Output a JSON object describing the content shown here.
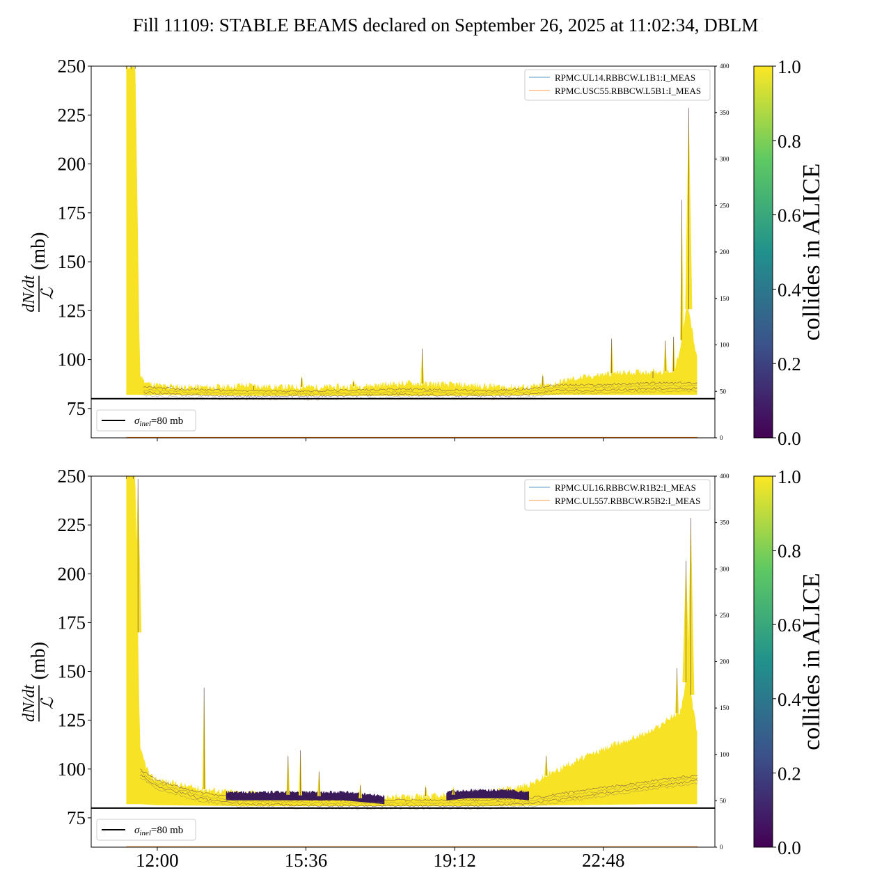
{
  "title": "Fill 11109: STABLE BEAMS declared on September 26, 2025 at 11:02:34, DBLM",
  "colors": {
    "envelope": "#f7e225",
    "band_dark": "#3b1a5a",
    "band_mid": "#8a7a5a",
    "reference_line": "#000000",
    "legend_blue": "#1f77b4",
    "legend_orange": "#ff7f0e",
    "viridis": [
      "#440154",
      "#3b528b",
      "#21918c",
      "#5ec962",
      "#fde725"
    ]
  },
  "chart_data": [
    {
      "type": "area",
      "panel": "top",
      "ylabel": "(mb)",
      "ylabel_fraction": {
        "numerator": "dN/dt",
        "denominator": "ℒ"
      },
      "ylim": [
        60,
        250
      ],
      "yticks": [
        75,
        100,
        125,
        150,
        175,
        200,
        225,
        250
      ],
      "y2lim": [
        0,
        400
      ],
      "y2ticks": [
        0,
        50,
        100,
        150,
        200,
        250,
        300,
        350,
        400
      ],
      "xlim": [
        "10:24",
        "25:30"
      ],
      "xticks": [
        {
          "t": "12:00",
          "label": ""
        },
        {
          "t": "15:36",
          "label": ""
        },
        {
          "t": "19:12",
          "label": ""
        },
        {
          "t": "22:48",
          "label": ""
        }
      ],
      "legend_right": [
        "RPMC.UL14.RBBCW.L1B1:I_MEAS",
        "RPMC.USC55.RBBCW.L5B1:I_MEAS"
      ],
      "reference_line": {
        "y": 80,
        "label_symbol": "σ",
        "label_sub": "inel",
        "label_rest": "=80 mb"
      },
      "colorbar": {
        "label": "collides in ALICE",
        "ticks": [
          "0.0",
          "0.2",
          "0.4",
          "0.6",
          "0.8",
          "1.0"
        ]
      },
      "series": [
        {
          "role": "envelope_top",
          "x": [
            "11:15",
            "11:28",
            "11:35",
            "11:45",
            "12:15",
            "12:45",
            "13:40",
            "14:00",
            "15:00",
            "16:30",
            "18:00",
            "19:30",
            "20:30",
            "21:00",
            "21:30",
            "22:00",
            "23:00",
            "24:00",
            "24:30",
            "24:40",
            "24:50",
            "25:05"
          ],
          "y": [
            250,
            250,
            92,
            88,
            86,
            86,
            86,
            87,
            86,
            86,
            88,
            87,
            86,
            86,
            87,
            90,
            93,
            94,
            94,
            105,
            130,
            98
          ]
        },
        {
          "role": "envelope_bottom",
          "x": [
            "11:15",
            "11:35",
            "12:00",
            "14:00",
            "16:00",
            "18:00",
            "20:00",
            "22:00",
            "24:00",
            "25:05"
          ],
          "y": [
            82,
            82,
            82,
            81.5,
            81.5,
            81.5,
            81.5,
            82,
            82,
            82
          ]
        },
        {
          "role": "band",
          "x": [
            "11:40",
            "12:30",
            "14:00",
            "16:00",
            "18:00",
            "20:00",
            "21:00",
            "21:40",
            "22:30",
            "24:00",
            "25:05"
          ],
          "y": [
            86,
            85,
            84,
            84,
            85,
            84,
            85,
            87,
            87,
            88,
            88
          ]
        },
        {
          "role": "spikes",
          "x": [
            "11:15",
            "11:22",
            "11:28",
            "12:20",
            "14:20",
            "15:30",
            "16:45",
            "18:25",
            "21:20",
            "23:00",
            "24:00",
            "24:18",
            "24:30",
            "24:42",
            "24:52"
          ],
          "y": [
            250,
            250,
            250,
            88,
            86,
            92,
            90,
            107,
            93,
            112,
            92,
            111,
            113,
            183,
            230
          ]
        }
      ]
    },
    {
      "type": "area",
      "panel": "bottom",
      "ylabel": "(mb)",
      "ylabel_fraction": {
        "numerator": "dN/dt",
        "denominator": "ℒ"
      },
      "ylim": [
        60,
        250
      ],
      "yticks": [
        75,
        100,
        125,
        150,
        175,
        200,
        225,
        250
      ],
      "y2lim": [
        0,
        400
      ],
      "y2ticks": [
        0,
        50,
        100,
        150,
        200,
        250,
        300,
        350,
        400
      ],
      "xlim": [
        "10:24",
        "25:30"
      ],
      "xticks": [
        {
          "t": "12:00",
          "label": "12:00"
        },
        {
          "t": "15:36",
          "label": "15:36"
        },
        {
          "t": "19:12",
          "label": "19:12"
        },
        {
          "t": "22:48",
          "label": "22:48"
        }
      ],
      "legend_right": [
        "RPMC.UL16.RBBCW.R1B2:I_MEAS",
        "RPMC.UL557.RBBCW.R5B2:I_MEAS"
      ],
      "reference_line": {
        "y": 80,
        "label_symbol": "σ",
        "label_sub": "inel",
        "label_rest": "=80 mb"
      },
      "colorbar": {
        "label": "collides in ALICE",
        "ticks": [
          "0.0",
          "0.2",
          "0.4",
          "0.6",
          "0.8",
          "1.0"
        ]
      },
      "series": [
        {
          "role": "envelope_top",
          "x": [
            "11:15",
            "11:28",
            "11:35",
            "11:50",
            "12:20",
            "13:00",
            "13:30",
            "14:00",
            "15:00",
            "17:00",
            "18:30",
            "20:00",
            "21:00",
            "22:00",
            "23:00",
            "24:00",
            "24:40",
            "24:50",
            "25:05"
          ],
          "y": [
            250,
            250,
            110,
            96,
            93,
            90,
            89,
            88,
            87,
            85,
            86,
            88,
            92,
            103,
            112,
            120,
            130,
            148,
            118
          ]
        },
        {
          "role": "envelope_bottom",
          "x": [
            "11:15",
            "11:35",
            "12:00",
            "14:00",
            "16:00",
            "18:00",
            "20:00",
            "22:00",
            "24:00",
            "25:05"
          ],
          "y": [
            82,
            82,
            81.5,
            81,
            81,
            81,
            81,
            81.5,
            82,
            82
          ]
        },
        {
          "role": "band",
          "x": [
            "11:35",
            "12:00",
            "13:00",
            "14:00",
            "16:00",
            "18:00",
            "20:00",
            "21:00",
            "22:00",
            "23:00",
            "24:00",
            "25:05"
          ],
          "y": [
            100,
            94,
            88,
            85,
            84,
            84,
            84,
            85,
            88,
            91,
            94,
            97
          ]
        },
        {
          "role": "dark_band",
          "x": [
            "13:40",
            "14:30",
            "15:30",
            "16:30",
            "17:00",
            "17:30"
          ],
          "y": [
            86,
            86,
            86,
            86,
            85,
            84
          ]
        },
        {
          "role": "dark_band",
          "x": [
            "19:00",
            "19:30",
            "20:00",
            "20:30",
            "21:00"
          ],
          "y": [
            86,
            87,
            87,
            87,
            86
          ]
        },
        {
          "role": "spikes",
          "x": [
            "11:15",
            "11:25",
            "11:32",
            "13:08",
            "15:10",
            "15:28",
            "15:55",
            "16:55",
            "18:30",
            "19:10",
            "21:25",
            "24:35",
            "24:48",
            "24:55"
          ],
          "y": [
            250,
            250,
            250,
            143,
            108,
            111,
            100,
            93,
            92,
            91,
            108,
            153,
            208,
            230
          ]
        }
      ]
    }
  ]
}
